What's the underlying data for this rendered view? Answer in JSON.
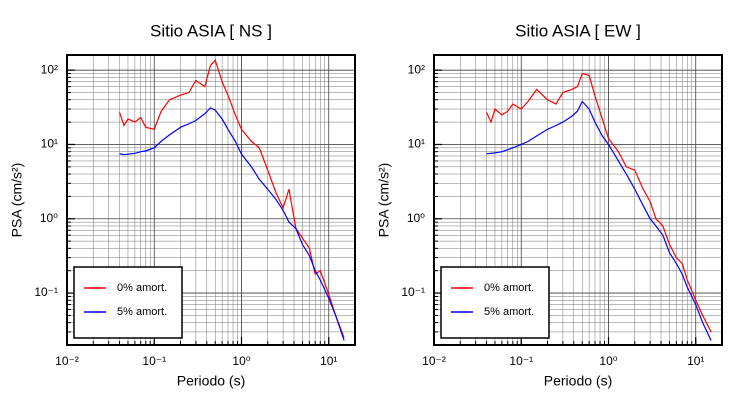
{
  "chart_data": [
    {
      "type": "line",
      "title": "Sitio ASIA [ NS ]",
      "xlabel": "Periodo (s)",
      "ylabel": "PSA (cm/s²)",
      "xscale": "log",
      "yscale": "log",
      "grid": true,
      "minor_grid": true,
      "legend": "lower left",
      "xlim": [
        0.01,
        20
      ],
      "ylim": [
        0.02,
        160
      ],
      "xticks": [
        {
          "value": 0.01,
          "label": "10⁻²"
        },
        {
          "value": 0.1,
          "label": "10⁻¹"
        },
        {
          "value": 1,
          "label": "10⁰"
        },
        {
          "value": 10,
          "label": "10¹"
        }
      ],
      "yticks": [
        {
          "value": 0.1,
          "label": "10⁻¹"
        },
        {
          "value": 1,
          "label": "10⁰"
        },
        {
          "value": 10,
          "label": "10¹"
        },
        {
          "value": 100,
          "label": "10²"
        }
      ],
      "x": [
        0.04,
        0.045,
        0.05,
        0.06,
        0.07,
        0.08,
        0.1,
        0.12,
        0.15,
        0.2,
        0.25,
        0.3,
        0.38,
        0.44,
        0.5,
        0.6,
        0.7,
        0.85,
        1.0,
        1.3,
        1.6,
        2.0,
        2.5,
        3.0,
        3.5,
        4.2,
        5,
        6,
        7,
        8,
        10,
        12,
        15
      ],
      "series": [
        {
          "name": "0% amort.",
          "color": "#ff0000",
          "values": [
            27,
            18,
            22,
            20,
            23,
            17,
            16,
            28,
            40,
            46,
            50,
            73,
            60,
            115,
            136,
            70,
            46,
            25,
            16,
            11,
            9,
            4.5,
            2.2,
            1.4,
            2.5,
            0.74,
            0.55,
            0.4,
            0.18,
            0.2,
            0.096,
            0.05,
            0.025
          ]
        },
        {
          "name": "5% amort.",
          "color": "#0000ff",
          "values": [
            7.5,
            7.3,
            7.4,
            7.6,
            8,
            8.2,
            9,
            11,
            13.5,
            17,
            19,
            21,
            26,
            31,
            29,
            22,
            16,
            11,
            7.4,
            5,
            3.4,
            2.5,
            1.8,
            1.3,
            0.9,
            0.74,
            0.45,
            0.32,
            0.2,
            0.15,
            0.085,
            0.05,
            0.023
          ]
        }
      ]
    },
    {
      "type": "line",
      "title": "Sitio ASIA [ EW ]",
      "xlabel": "Periodo (s)",
      "ylabel": "PSA (cm/s²)",
      "xscale": "log",
      "yscale": "log",
      "grid": true,
      "minor_grid": true,
      "legend": "lower left",
      "xlim": [
        0.01,
        20
      ],
      "ylim": [
        0.02,
        160
      ],
      "xticks": [
        {
          "value": 0.01,
          "label": "10⁻²"
        },
        {
          "value": 0.1,
          "label": "10⁻¹"
        },
        {
          "value": 1,
          "label": "10⁰"
        },
        {
          "value": 10,
          "label": "10¹"
        }
      ],
      "yticks": [
        {
          "value": 0.1,
          "label": "10⁻¹"
        },
        {
          "value": 1,
          "label": "10⁰"
        },
        {
          "value": 10,
          "label": "10¹"
        },
        {
          "value": 100,
          "label": "10²"
        }
      ],
      "x": [
        0.04,
        0.045,
        0.05,
        0.06,
        0.07,
        0.08,
        0.1,
        0.12,
        0.15,
        0.2,
        0.25,
        0.3,
        0.38,
        0.44,
        0.5,
        0.6,
        0.7,
        0.85,
        1.0,
        1.3,
        1.6,
        2.0,
        2.5,
        3.0,
        3.5,
        4.2,
        5,
        6,
        7,
        8,
        10,
        12,
        15
      ],
      "series": [
        {
          "name": "0% amort.",
          "color": "#ff0000",
          "values": [
            27,
            20,
            30,
            25,
            28,
            35,
            30,
            38,
            55,
            40,
            35,
            50,
            55,
            60,
            90,
            85,
            45,
            22,
            12,
            8,
            5,
            4.5,
            2.5,
            1.7,
            1.0,
            0.8,
            0.45,
            0.3,
            0.25,
            0.15,
            0.08,
            0.05,
            0.03
          ]
        },
        {
          "name": "5% amort.",
          "color": "#0000ff",
          "values": [
            7.5,
            7.6,
            7.7,
            8,
            8.5,
            9,
            10,
            11,
            13,
            16,
            18,
            20,
            24,
            28,
            38,
            30,
            20,
            13,
            10,
            6,
            4,
            2.5,
            1.5,
            1,
            0.8,
            0.6,
            0.35,
            0.25,
            0.18,
            0.12,
            0.07,
            0.04,
            0.023
          ]
        }
      ]
    }
  ]
}
